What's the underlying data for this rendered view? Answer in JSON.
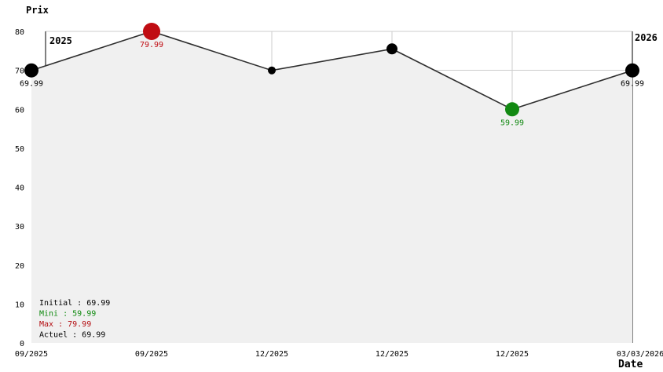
{
  "chart": {
    "y_axis_title": "Prix",
    "x_axis_title": "Date",
    "year_left": "2025",
    "year_right": "2026"
  },
  "chart_data": {
    "type": "line",
    "x": [
      "09/2025",
      "09/2025",
      "12/2025",
      "12/2025",
      "12/2025",
      "03/03/2026"
    ],
    "values": [
      69.99,
      79.99,
      69.99,
      75.5,
      59.99,
      69.99
    ],
    "point_labels": [
      "69.99",
      "79.99",
      "",
      "",
      "59.99",
      "69.99"
    ],
    "point_roles": [
      "initial",
      "max",
      "normal",
      "normal",
      "min",
      "current"
    ],
    "y_ticks": [
      "0",
      "10",
      "20",
      "30",
      "40",
      "50",
      "60",
      "70",
      "80"
    ],
    "ylim": [
      0,
      80
    ],
    "xlabel": "Date",
    "ylabel": "Prix",
    "grid": true,
    "area_fill": true,
    "legend_position": "bottom-left"
  },
  "legend": {
    "items": [
      {
        "label": "Initial : 69.99",
        "color": "#000000"
      },
      {
        "label": "Mini : 59.99",
        "color": "#0f8a0f"
      },
      {
        "label": "Max : 79.99",
        "color": "#b30c10"
      },
      {
        "label": "Actuel : 69.99",
        "color": "#000000"
      }
    ]
  },
  "colors": {
    "max": "#c00c12",
    "min": "#128912",
    "normal": "#000000",
    "initial": "#000000",
    "current": "#000000",
    "line": "#2e2e2e",
    "fill": "#f0f0f0",
    "grid": "#cccccc",
    "separator": "#000000"
  }
}
